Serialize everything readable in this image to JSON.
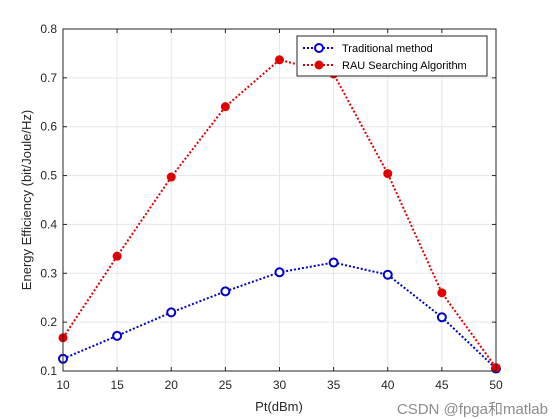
{
  "chart_data": {
    "type": "line",
    "xlabel": "Pt(dBm)",
    "ylabel": "Energy Efficiency (bit/Joule/Hz)",
    "xlim": [
      10,
      50
    ],
    "ylim": [
      0.1,
      0.8
    ],
    "x": [
      10,
      15,
      20,
      25,
      30,
      35,
      40,
      45,
      50
    ],
    "xticks": [
      "10",
      "15",
      "20",
      "25",
      "30",
      "35",
      "40",
      "45",
      "50"
    ],
    "yticks": [
      "0.1",
      "0.2",
      "0.3",
      "0.4",
      "0.5",
      "0.6",
      "0.7",
      "0.8"
    ],
    "grid": true,
    "legend_position": "top-right",
    "series": [
      {
        "name": "Traditional method",
        "color": "#0000cc",
        "marker": "open-circle",
        "values": [
          0.125,
          0.172,
          0.22,
          0.263,
          0.302,
          0.322,
          0.297,
          0.21,
          0.105
        ]
      },
      {
        "name": "RAU Searching Algorithm",
        "color": "#e00000",
        "marker": "filled-circle",
        "values": [
          0.168,
          0.335,
          0.497,
          0.641,
          0.737,
          0.708,
          0.504,
          0.26,
          0.107
        ]
      }
    ]
  },
  "watermark": "CSDN @fpga和matlab"
}
